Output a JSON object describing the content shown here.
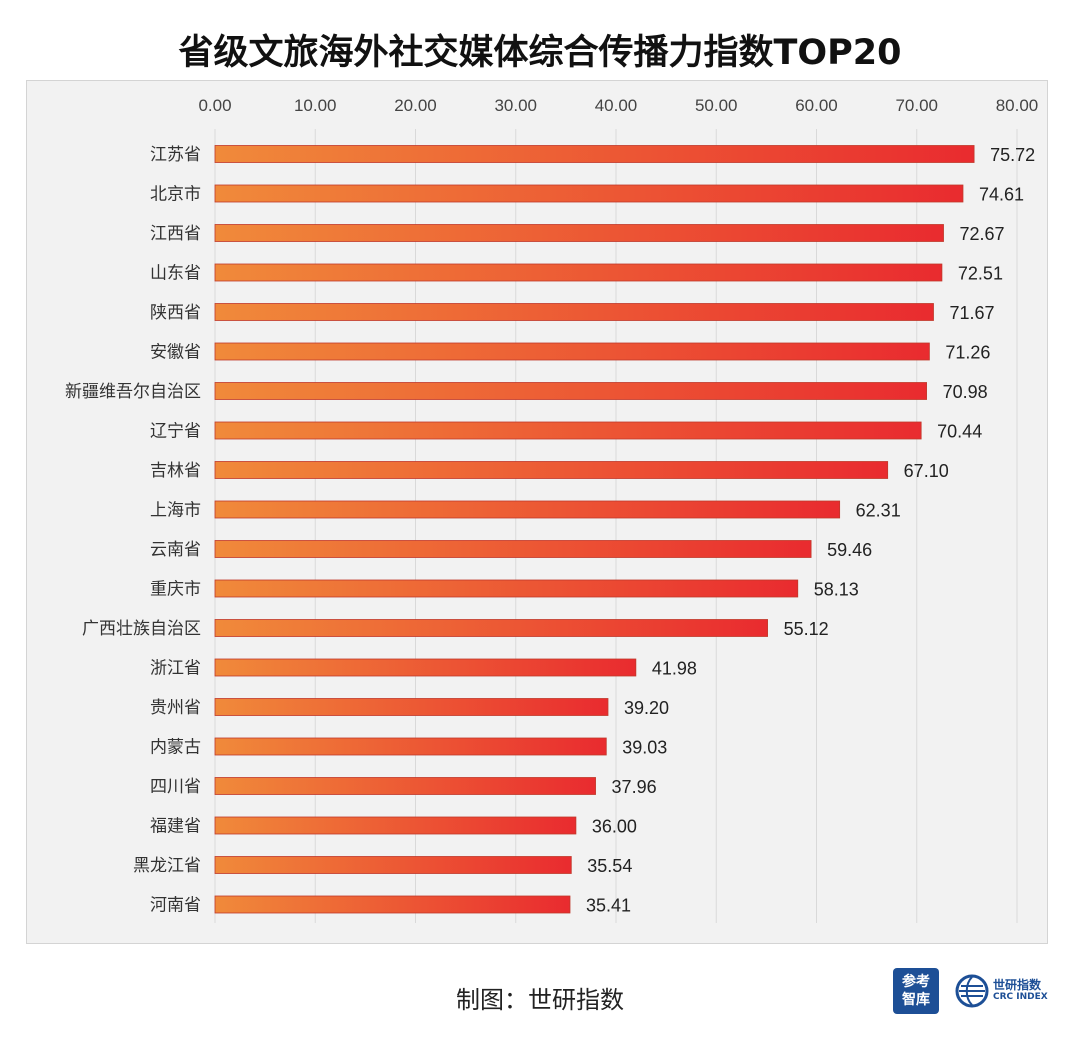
{
  "title": "省级文旅海外社交媒体综合传播力指数TOP20",
  "footer": "制图：世研指数",
  "logo_left": {
    "line1": "参考",
    "line2": "智库"
  },
  "logo_right": {
    "cn": "世研指数",
    "en": "CRC INDEX"
  },
  "colors": {
    "bar_start": "#f08a3a",
    "bar_end": "#e92b2f",
    "bar_border": "#c0392b",
    "grid": "#d9d9d9"
  },
  "chart_data": {
    "type": "bar",
    "orientation": "horizontal",
    "title": "省级文旅海外社交媒体综合传播力指数TOP20",
    "xlim": [
      0,
      80
    ],
    "x_ticks": [
      "0.00",
      "10.00",
      "20.00",
      "30.00",
      "40.00",
      "50.00",
      "60.00",
      "70.00",
      "80.00"
    ],
    "axis_position": "top",
    "grid": true,
    "categories": [
      "江苏省",
      "北京市",
      "江西省",
      "山东省",
      "陕西省",
      "安徽省",
      "新疆维吾尔自治区",
      "辽宁省",
      "吉林省",
      "上海市",
      "云南省",
      "重庆市",
      "广西壮族自治区",
      "浙江省",
      "贵州省",
      "内蒙古",
      "四川省",
      "福建省",
      "黑龙江省",
      "河南省"
    ],
    "values": [
      75.72,
      74.61,
      72.67,
      72.51,
      71.67,
      71.26,
      70.98,
      70.44,
      67.1,
      62.31,
      59.46,
      58.13,
      55.12,
      41.98,
      39.2,
      39.03,
      37.96,
      36.0,
      35.54,
      35.41
    ],
    "value_labels": [
      "75.72",
      "74.61",
      "72.67",
      "72.51",
      "71.67",
      "71.26",
      "70.98",
      "70.44",
      "67.10",
      "62.31",
      "59.46",
      "58.13",
      "55.12",
      "41.98",
      "39.20",
      "39.03",
      "37.96",
      "36.00",
      "35.54",
      "35.41"
    ]
  }
}
